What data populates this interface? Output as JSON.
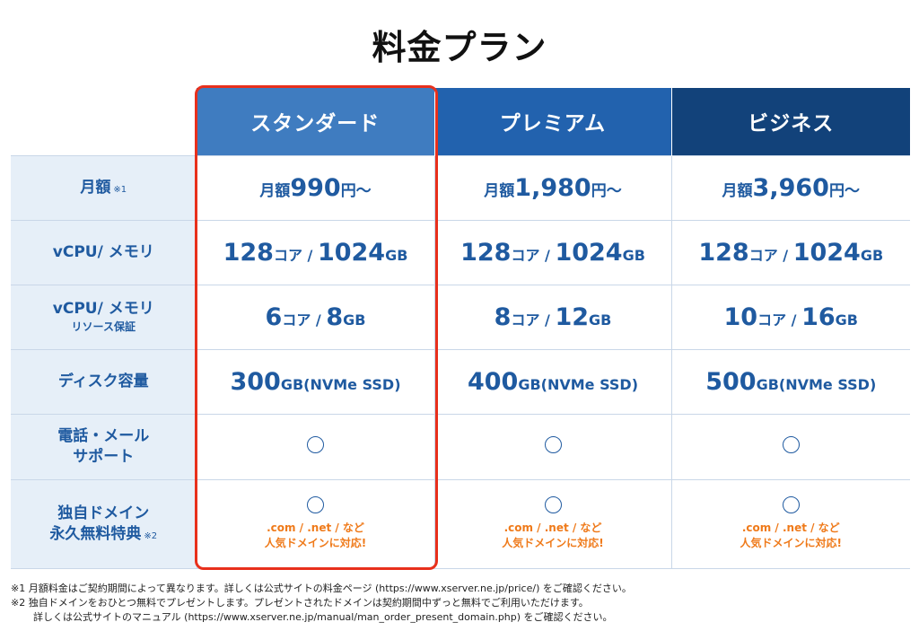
{
  "title": "料金プラン",
  "plans": [
    {
      "name": "スタンダード",
      "color": "#3f7cc0"
    },
    {
      "name": "プレミアム",
      "color": "#2262ae"
    },
    {
      "name": "ビジネス",
      "color": "#12427a"
    }
  ],
  "rows": {
    "price": {
      "label": "月額",
      "mark": "※1",
      "values": [
        {
          "prefix": "月額",
          "amount": "990",
          "suffix": "円〜"
        },
        {
          "prefix": "月額",
          "amount": "1,980",
          "suffix": "円〜"
        },
        {
          "prefix": "月額",
          "amount": "3,960",
          "suffix": "円〜"
        }
      ]
    },
    "cpu": {
      "label": "vCPU/ メモリ",
      "values": [
        {
          "cores": "128",
          "cores_unit": "コア / ",
          "mem": "1024",
          "mem_unit": "GB"
        },
        {
          "cores": "128",
          "cores_unit": "コア / ",
          "mem": "1024",
          "mem_unit": "GB"
        },
        {
          "cores": "128",
          "cores_unit": "コア / ",
          "mem": "1024",
          "mem_unit": "GB"
        }
      ]
    },
    "guaranteed": {
      "label": "vCPU/ メモリ",
      "sublabel": "リソース保証",
      "values": [
        {
          "cores": "6",
          "cores_unit": "コア / ",
          "mem": "8",
          "mem_unit": "GB"
        },
        {
          "cores": "8",
          "cores_unit": "コア / ",
          "mem": "12",
          "mem_unit": "GB"
        },
        {
          "cores": "10",
          "cores_unit": "コア / ",
          "mem": "16",
          "mem_unit": "GB"
        }
      ]
    },
    "disk": {
      "label": "ディスク容量",
      "values": [
        {
          "amount": "300",
          "unit": "GB(NVMe SSD)"
        },
        {
          "amount": "400",
          "unit": "GB(NVMe SSD)"
        },
        {
          "amount": "500",
          "unit": "GB(NVMe SSD)"
        }
      ]
    },
    "support": {
      "label_line1": "電話・メール",
      "label_line2": "サポート"
    },
    "domain": {
      "label_line1": "独自ドメイン",
      "label_line2": "永久無料特典",
      "mark": "※2",
      "note_line1": ".com / .net / など",
      "note_line2": "人気ドメインに対応!"
    }
  },
  "highlight_color": "#e8301c",
  "accent_orange": "#ef7a1a",
  "footnotes": {
    "note1": "※1 月額料金はご契約期間によって異なります。詳しくは公式サイトの料金ページ (https://www.xserver.ne.jp/price/) をご確認ください。",
    "note2_line1": "※2 独自ドメインをおひとつ無料でプレゼントします。プレゼントされたドメインは契約期間中ずっと無料でご利用いただけます。",
    "note2_line2": "詳しくは公式サイトのマニュアル (https://www.xserver.ne.jp/manual/man_order_present_domain.php) をご確認ください。"
  }
}
